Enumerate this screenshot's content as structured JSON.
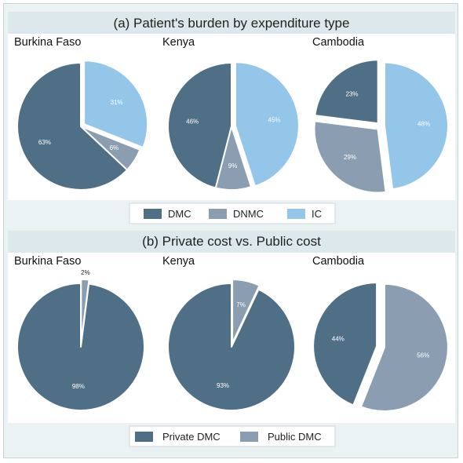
{
  "chart_data": [
    {
      "type": "pie",
      "title": "(a) Patient's burden by expenditure type",
      "legend": {
        "placement": "bottom",
        "entries": [
          {
            "name": "DMC",
            "color": "#4f6f87"
          },
          {
            "name": "DNMC",
            "color": "#8a9db1"
          },
          {
            "name": "IC",
            "color": "#93c6e8"
          }
        ]
      },
      "pies": [
        {
          "country": "Burkina Faso",
          "slices": [
            {
              "category": "DMC",
              "value": 63,
              "label": "63%",
              "exploded": false
            },
            {
              "category": "DNMC",
              "value": 6,
              "label": "6%",
              "exploded": false
            },
            {
              "category": "IC",
              "value": 31,
              "label": "31%",
              "exploded": true
            }
          ]
        },
        {
          "country": "Kenya",
          "slices": [
            {
              "category": "DMC",
              "value": 46,
              "label": "46%",
              "exploded": false
            },
            {
              "category": "DNMC",
              "value": 9,
              "label": "9%",
              "exploded": false
            },
            {
              "category": "IC",
              "value": 45,
              "label": "45%",
              "exploded": true
            }
          ]
        },
        {
          "country": "Cambodia",
          "slices": [
            {
              "category": "DMC",
              "value": 23,
              "label": "23%",
              "exploded": true
            },
            {
              "category": "DNMC",
              "value": 29,
              "label": "29%",
              "exploded": true
            },
            {
              "category": "IC",
              "value": 48,
              "label": "48%",
              "exploded": true
            }
          ]
        }
      ]
    },
    {
      "type": "pie",
      "title": "(b) Private cost vs. Public cost",
      "legend": {
        "placement": "bottom",
        "entries": [
          {
            "name": "Private DMC",
            "color": "#4f6f87"
          },
          {
            "name": "Public DMC",
            "color": "#8a9db1"
          }
        ]
      },
      "pies": [
        {
          "country": "Burkina Faso",
          "slices": [
            {
              "category": "Private DMC",
              "value": 98,
              "label": "98%",
              "exploded": false
            },
            {
              "category": "Public DMC",
              "value": 2,
              "label": "2%",
              "exploded": true
            }
          ]
        },
        {
          "country": "Kenya",
          "slices": [
            {
              "category": "Private DMC",
              "value": 93,
              "label": "93%",
              "exploded": false
            },
            {
              "category": "Public DMC",
              "value": 7,
              "label": "7%",
              "exploded": true
            }
          ]
        },
        {
          "country": "Cambodia",
          "slices": [
            {
              "category": "Private DMC",
              "value": 44,
              "label": "44%",
              "exploded": true
            },
            {
              "category": "Public DMC",
              "value": 56,
              "label": "56%",
              "exploded": true
            }
          ]
        }
      ]
    }
  ]
}
